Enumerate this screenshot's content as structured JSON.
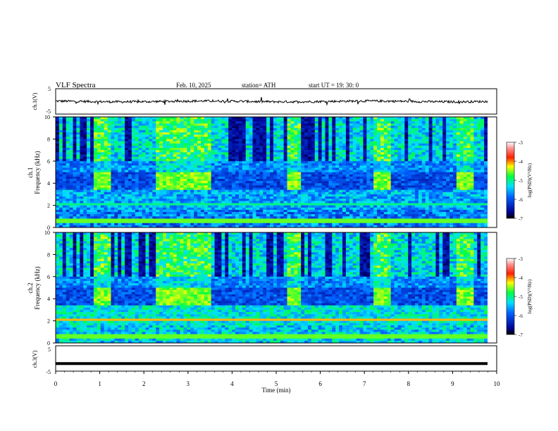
{
  "header": {
    "title": "VLF  Spectra",
    "date": "Feb. 10, 2025",
    "station": "station= ATH",
    "start": "start  UT  =   19: 30: 0"
  },
  "colors": {
    "low": "#000080",
    "mid": "#00c8ff",
    "green": "#00ff60",
    "yellow": "#ffff00",
    "high": "#ff0000"
  },
  "chart_data": [
    {
      "type": "line",
      "panel": "ch1-waveform",
      "ylabel": "ch.1(V)",
      "ylim": [
        -5,
        5
      ],
      "yticks": [
        "5",
        "-5"
      ],
      "note_values": "noisy waveform centered near 0 V, amplitude about ±0.5 V",
      "xlim": [
        0,
        10
      ]
    },
    {
      "type": "heatmap",
      "panel": "ch1-spectrogram",
      "ylabel": "ch.1\nFrequency (kHz)",
      "ylabel_lines": [
        "ch.1",
        "Frequency (kHz)"
      ],
      "ylim": [
        0,
        10
      ],
      "yticks": [
        "0",
        "2",
        "4",
        "6",
        "8",
        "10"
      ],
      "xlim": [
        0,
        10
      ],
      "colorbar": {
        "label": "log(PSD)(V²/Hz)",
        "range": [
          -7,
          -3
        ],
        "ticks": [
          "-3",
          "-4",
          "-5",
          "-6",
          "-7"
        ]
      },
      "bursts_min": [
        [
          0.85,
          1.25
        ],
        [
          2.3,
          3.55
        ],
        [
          5.25,
          5.6
        ],
        [
          7.2,
          7.6
        ],
        [
          9.05,
          9.45
        ]
      ]
    },
    {
      "type": "heatmap",
      "panel": "ch2-spectrogram",
      "ylabel_lines": [
        "ch.2",
        "Frequency (kHz)"
      ],
      "ylim": [
        0,
        10
      ],
      "yticks": [
        "0",
        "2",
        "4",
        "6",
        "8",
        "10"
      ],
      "xlim": [
        0,
        10
      ],
      "colorbar": {
        "label": "log(PSD)(V²/Hz)",
        "range": [
          -7,
          -3
        ],
        "ticks": [
          "-3",
          "-4",
          "-5",
          "-6",
          "-7"
        ]
      },
      "bursts_min": [
        [
          0.85,
          1.25
        ],
        [
          2.3,
          3.55
        ],
        [
          5.25,
          5.6
        ],
        [
          7.2,
          7.6
        ],
        [
          9.05,
          9.45
        ]
      ]
    },
    {
      "type": "line",
      "panel": "ch3-waveform",
      "ylabel": "ch.3(V)",
      "ylim": [
        -5,
        5
      ],
      "yticks": [
        "5",
        "-5"
      ],
      "note_values": "flat line near -2 V",
      "level": -2,
      "xlim": [
        0,
        10
      ],
      "xlabel": "Time  (min)",
      "xticks": [
        "0",
        "1",
        "2",
        "3",
        "4",
        "5",
        "6",
        "7",
        "8",
        "9",
        "10"
      ]
    }
  ]
}
